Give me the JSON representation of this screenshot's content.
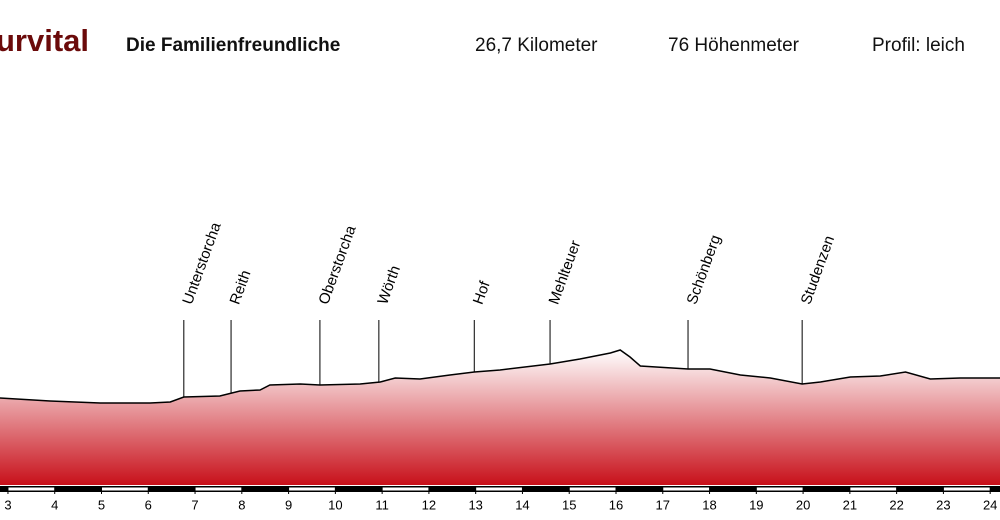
{
  "chart_data": {
    "type": "area",
    "title": "urvital",
    "subtitle": "Die Familienfreundliche",
    "stats": [
      "26,7 Kilometer",
      "76 Höhenmeter",
      "Profil: leich"
    ],
    "x": [
      2.83,
      3.9,
      4.97,
      6.04,
      6.47,
      6.76,
      7.53,
      7.96,
      8.39,
      8.6,
      9.25,
      9.67,
      10.53,
      10.96,
      11.28,
      11.81,
      12.45,
      12.97,
      13.52,
      14.59,
      15.23,
      15.88,
      16.09,
      16.3,
      16.52,
      17.54,
      18.01,
      18.66,
      19.3,
      19.98,
      20.37,
      21.01,
      21.65,
      22.19,
      22.72,
      23.36,
      24.21
    ],
    "values": [
      87,
      84,
      82,
      82,
      83,
      88,
      89,
      94,
      95,
      100,
      101,
      100,
      101,
      103,
      107,
      106,
      110,
      113,
      115,
      121,
      126,
      132,
      135,
      128,
      119,
      116,
      116,
      110,
      107,
      101,
      103,
      108,
      109,
      113,
      106,
      107,
      107
    ],
    "line_color": "#000000",
    "fill_top": "#ffffff",
    "fill_bottom": "#c8101a",
    "title_color": "#6b0a0a",
    "xlim": [
      2.83,
      24.21
    ],
    "ylim": [
      0,
      385
    ],
    "xticks": [
      3,
      4,
      5,
      6,
      7,
      8,
      9,
      10,
      11,
      12,
      13,
      14,
      15,
      16,
      17,
      18,
      19,
      20,
      21,
      22,
      23,
      24
    ],
    "annotations": [
      {
        "label": "Unterstorcha",
        "x": 6.76
      },
      {
        "label": "Reith",
        "x": 7.77
      },
      {
        "label": "Oberstorcha",
        "x": 9.67
      },
      {
        "label": "Wörth",
        "x": 10.93
      },
      {
        "label": "Hof",
        "x": 12.97
      },
      {
        "label": "Mehlteuer",
        "x": 14.59
      },
      {
        "label": "Schönberg",
        "x": 17.54
      },
      {
        "label": "Studenzen",
        "x": 19.98
      }
    ]
  }
}
